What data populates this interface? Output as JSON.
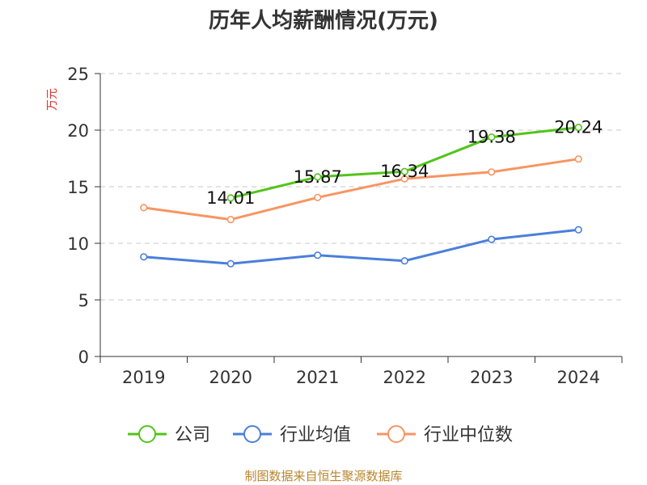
{
  "chart_data": {
    "type": "line",
    "title": "历年人均薪酬情况(万元)",
    "ylabel": "万元",
    "xlabel": "",
    "categories": [
      "2019",
      "2020",
      "2021",
      "2022",
      "2023",
      "2024"
    ],
    "ylim": [
      0,
      25
    ],
    "yticks": [
      0,
      5,
      10,
      15,
      20,
      25
    ],
    "grid": true,
    "legend_position": "bottom",
    "series": [
      {
        "name": "公司",
        "color": "#52c41a",
        "values": [
          null,
          14.01,
          15.87,
          16.34,
          19.38,
          20.24
        ],
        "labels": [
          null,
          "14.01",
          "15.87",
          "16.34",
          "19.38",
          "20.24"
        ]
      },
      {
        "name": "行业均值",
        "color": "#4a7fdb",
        "values": [
          8.8,
          8.2,
          8.95,
          8.45,
          10.35,
          11.2
        ],
        "labels": null
      },
      {
        "name": "行业中位数",
        "color": "#f79562",
        "values": [
          13.15,
          12.1,
          14.05,
          15.7,
          16.3,
          17.45
        ],
        "labels": null
      }
    ]
  },
  "source": "制图数据来自恒生聚源数据库"
}
